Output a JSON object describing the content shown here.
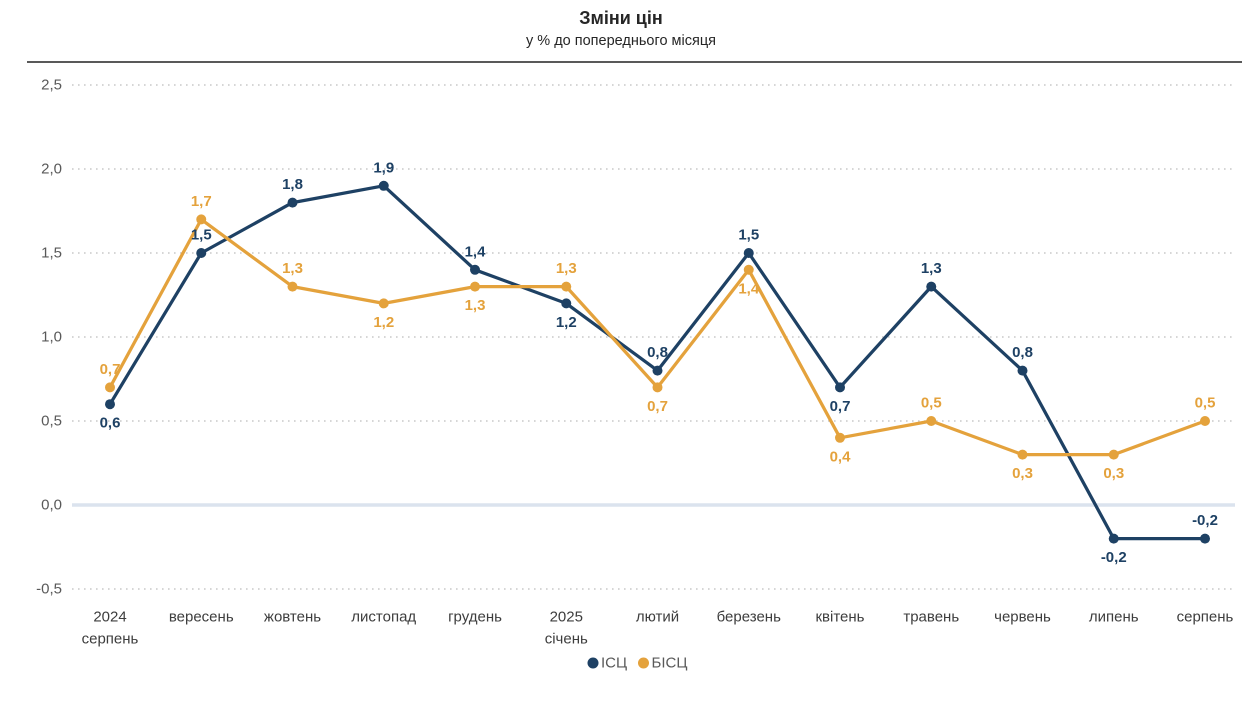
{
  "header": {
    "title": "Зміни цін",
    "subtitle": "у % до попереднього місяця"
  },
  "chart_data": {
    "type": "line",
    "title": "Зміни цін",
    "subtitle": "у % до попереднього місяця",
    "categories": [
      "2024\nсерпень",
      "вересень",
      "жовтень",
      "листопад",
      "грудень",
      "2025\nсічень",
      "лютий",
      "березень",
      "квітень",
      "травень",
      "червень",
      "липень",
      "серпень"
    ],
    "series": [
      {
        "name": "ІСЦ",
        "color": "#1E4164",
        "values": [
          0.6,
          1.5,
          1.8,
          1.9,
          1.4,
          1.2,
          0.8,
          1.5,
          0.7,
          1.3,
          0.8,
          -0.2,
          -0.2
        ],
        "label_positions": [
          "below",
          "above",
          "above",
          "above",
          "above",
          "below",
          "above",
          "above",
          "below",
          "above",
          "above",
          "below",
          "above"
        ]
      },
      {
        "name": "БІСЦ",
        "color": "#E4A23C",
        "values": [
          0.7,
          1.7,
          1.3,
          1.2,
          1.3,
          1.3,
          0.7,
          1.4,
          0.4,
          0.5,
          0.3,
          0.3,
          0.5
        ],
        "label_positions": [
          "above",
          "above",
          "above",
          "below",
          "below",
          "above",
          "below",
          "below",
          "below",
          "above",
          "below",
          "below",
          "above"
        ]
      }
    ],
    "ylim": [
      -0.5,
      2.5
    ],
    "yticks": [
      2.5,
      2.0,
      1.5,
      1.0,
      0.5,
      0.0,
      -0.5
    ],
    "decimal_separator": ",",
    "grid": "horizontal-dotted",
    "zero_line": true,
    "legend_position": "bottom"
  },
  "colors": {
    "grid_dotted": "#c9c9c9",
    "zero_line": "#dbe3ee",
    "header_divider": "#595959",
    "y_axis_text": "#595959",
    "x_axis_text": "#3d3d3d",
    "legend_text": "#595959",
    "background": "#ffffff"
  }
}
